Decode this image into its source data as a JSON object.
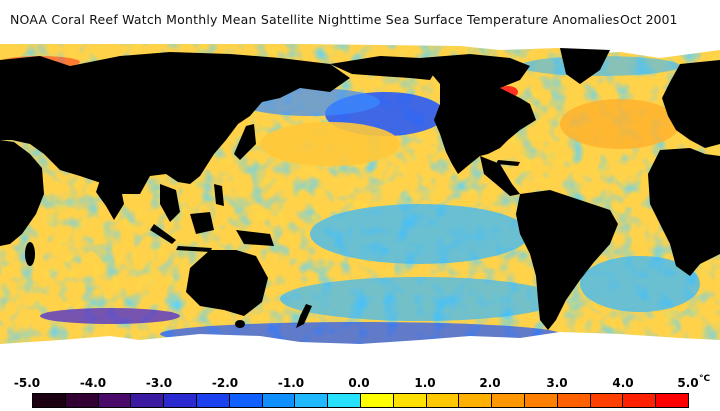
{
  "header": {
    "title": "NOAA Coral Reef Watch Monthly Mean Satellite Nighttime Sea Surface Temperature Anomalies",
    "date": "Oct 2001"
  },
  "legend": {
    "ticks": [
      "-5.0",
      "-4.0",
      "-3.0",
      "-2.0",
      "-1.0",
      "0.0",
      "1.0",
      "2.0",
      "3.0",
      "4.0",
      "5.0"
    ],
    "unit": "°C",
    "colors": [
      "#1a0010",
      "#330033",
      "#4a0a6a",
      "#3a1aa0",
      "#2a2ad0",
      "#1a40f0",
      "#1060ff",
      "#1090ff",
      "#20b8ff",
      "#28e0ff",
      "#ffff00",
      "#ffe000",
      "#ffc800",
      "#ffb000",
      "#ff9800",
      "#ff8000",
      "#ff6000",
      "#ff4000",
      "#ff2000",
      "#ff0000"
    ]
  },
  "map": {
    "colors": {
      "ocean_positive": "#ffd24a",
      "ocean_neutral": "#38b8ff",
      "ocean_negative": "#1e55ff",
      "land": "#000000",
      "ice": "#ffffff"
    }
  }
}
